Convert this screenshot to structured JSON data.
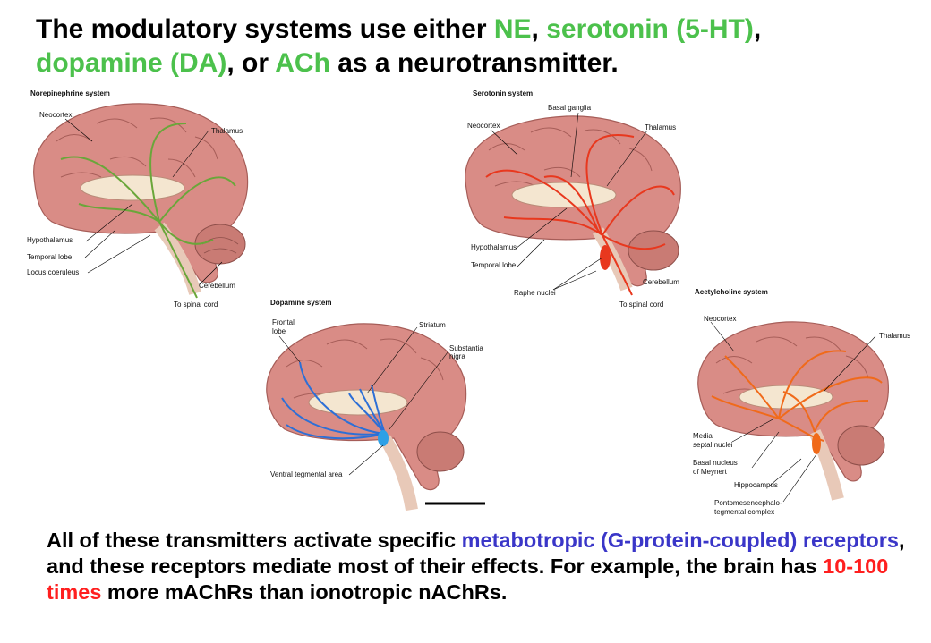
{
  "title": {
    "part1": "The modulatory systems use either ",
    "ne": "NE",
    "sep1": ", ",
    "serotonin": "serotonin (5-HT)",
    "sep2": ",",
    "dopamine": "dopamine (DA)",
    "sep3": ", or ",
    "ach": "ACh",
    "part2": " as a neurotransmitter."
  },
  "panels": {
    "ne": {
      "title": "Norepinephrine system",
      "labels": [
        "Neocortex",
        "Thalamus",
        "Hypothalamus",
        "Temporal lobe",
        "Locus coeruleus",
        "Cerebellum",
        "To spinal cord"
      ]
    },
    "serotonin": {
      "title": "Serotonin system",
      "labels": [
        "Basal ganglia",
        "Neocortex",
        "Thalamus",
        "Hypothalamus",
        "Temporal lobe",
        "Raphe nuclei",
        "Cerebellum",
        "To spinal cord"
      ]
    },
    "dopamine": {
      "title": "Dopamine system",
      "labels": [
        "Frontal",
        "lobe",
        "Striatum",
        "Substantia",
        "nigra",
        "Ventral tegmental area"
      ]
    },
    "ach": {
      "title": "Acetylcholine system",
      "labels": [
        "Neocortex",
        "Thalamus",
        "Medial",
        "septal nuclei",
        "Basal nucleus",
        "of Meynert",
        "Hippocampus",
        "Pontomesencephalo-",
        "tegmental complex"
      ]
    }
  },
  "body": {
    "t1": "All of these transmitters activate specific ",
    "metabotropic": "metabotropic (G-protein-coupled) receptors",
    "t2": ", and these receptors mediate most of their effects. For example, the brain has ",
    "ratio": "10-100 times",
    "t3": " more mAChRs than ionotropic nAChRs."
  },
  "colors": {
    "ne_pathway": "#6aa63a",
    "serotonin_pathway": "#e8381e",
    "dopamine_pathway": "#2d6fd6",
    "ach_pathway": "#f06a1a",
    "brain": "#d98c86"
  }
}
